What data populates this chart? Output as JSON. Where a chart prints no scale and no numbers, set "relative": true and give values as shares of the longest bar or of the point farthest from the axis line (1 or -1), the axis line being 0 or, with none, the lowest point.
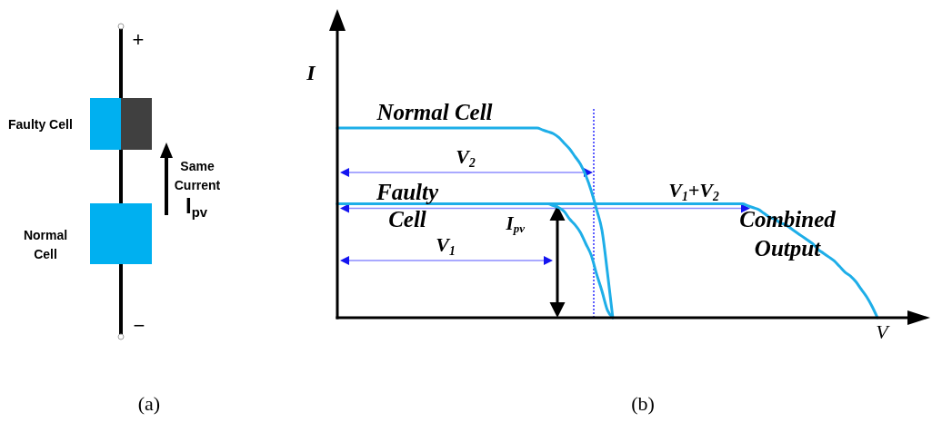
{
  "chart_data": [
    {
      "type": "other",
      "annotations": [
        "+",
        "Faulty Cell",
        "Same Current",
        "I$_{pv}$",
        "Normal Cell",
        "−",
        "(a)"
      ]
    },
    {
      "type": "line",
      "relative": true,
      "xlabel": "V",
      "ylabel": "I",
      "categories": [
        null,
        null,
        null,
        null,
        null,
        null,
        null,
        null,
        null,
        null,
        null,
        null,
        null,
        null,
        null,
        null,
        null,
        null,
        null,
        null,
        null,
        null,
        null,
        null,
        null,
        null,
        null,
        null,
        null,
        null,
        null,
        null,
        null,
        null,
        null,
        null,
        null,
        null,
        null,
        null,
        null,
        null,
        null,
        null,
        null,
        null,
        null,
        null,
        null,
        null,
        null,
        null,
        null,
        null,
        null,
        null,
        null,
        null,
        null,
        null,
        null,
        null,
        null,
        null,
        null,
        null,
        null,
        null,
        null,
        null,
        null,
        null,
        null,
        null,
        null,
        null,
        null,
        null,
        null,
        null,
        null,
        null,
        null,
        null,
        null,
        null,
        null,
        null,
        null,
        null,
        null,
        null,
        null,
        null,
        null,
        null,
        null,
        null,
        null,
        null,
        null
      ],
      "series": [
        {
          "name": "Normal Cell",
          "color": "#1eaee8",
          "values": [
            1,
            1,
            1,
            1,
            1,
            1,
            1,
            1,
            1,
            1,
            1,
            1,
            1,
            1,
            1,
            1,
            1,
            1,
            1,
            1,
            1,
            1,
            1,
            1,
            1,
            1,
            1,
            1,
            1,
            1,
            1,
            1,
            1,
            1,
            1,
            1,
            1,
            1,
            0.99,
            0.98,
            0.97,
            0.95,
            0.92,
            0.89,
            0.85,
            0.81,
            0.75,
            0.67,
            0.57,
            0.46,
            0.24,
            0,
            null,
            null,
            null,
            null,
            null,
            null,
            null,
            null,
            null,
            null,
            null,
            null,
            null,
            null,
            null,
            null,
            null,
            null,
            null,
            null,
            null,
            null,
            null,
            null,
            null,
            null,
            null,
            null,
            null,
            null,
            null,
            null,
            null,
            null,
            null,
            null,
            null,
            null,
            null,
            null,
            null,
            null,
            null,
            null,
            null,
            null,
            null,
            null,
            null
          ]
        },
        {
          "name": "Faulty Cell",
          "color": "#1eaee8",
          "values": [
            0.6,
            0.6,
            0.6,
            0.6,
            0.6,
            0.6,
            0.6,
            0.6,
            0.6,
            0.6,
            0.6,
            0.6,
            0.6,
            0.6,
            0.6,
            0.6,
            0.6,
            0.6,
            0.6,
            0.6,
            0.6,
            0.6,
            0.6,
            0.6,
            0.6,
            0.6,
            0.6,
            0.6,
            0.6,
            0.6,
            0.6,
            0.6,
            0.6,
            0.6,
            0.6,
            0.6,
            0.6,
            0.6,
            0.6,
            0.6,
            0.59,
            0.58,
            0.56,
            0.52,
            0.49,
            0.45,
            0.39,
            0.33,
            0.23,
            0.14,
            0.04,
            0,
            null,
            null,
            null,
            null,
            null,
            null,
            null,
            null,
            null,
            null,
            null,
            null,
            null,
            null,
            null,
            null,
            null,
            null,
            null,
            null,
            null,
            null,
            null,
            null,
            null,
            null,
            null,
            null,
            null,
            null,
            null,
            null,
            null,
            null,
            null,
            null,
            null,
            null,
            null,
            null,
            null,
            null,
            null,
            null,
            null,
            null,
            null,
            null,
            null
          ]
        },
        {
          "name": "Combined Output",
          "color": "#1eaee8",
          "values": [
            0.6,
            0.6,
            0.6,
            0.6,
            0.6,
            0.6,
            0.6,
            0.6,
            0.6,
            0.6,
            0.6,
            0.6,
            0.6,
            0.6,
            0.6,
            0.6,
            0.6,
            0.6,
            0.6,
            0.6,
            0.6,
            0.6,
            0.6,
            0.6,
            0.6,
            0.6,
            0.6,
            0.6,
            0.6,
            0.6,
            0.6,
            0.6,
            0.6,
            0.6,
            0.6,
            0.6,
            0.6,
            0.6,
            0.6,
            0.6,
            0.6,
            0.6,
            0.6,
            0.6,
            0.6,
            0.6,
            0.6,
            0.6,
            0.6,
            0.6,
            0.6,
            0.6,
            0.6,
            0.6,
            0.6,
            0.6,
            0.6,
            0.6,
            0.6,
            0.6,
            0.6,
            0.6,
            0.6,
            0.6,
            0.6,
            0.6,
            0.6,
            0.6,
            0.6,
            0.6,
            0.6,
            0.6,
            0.6,
            0.6,
            0.6,
            0.6,
            0.59,
            0.58,
            0.57,
            0.55,
            0.53,
            0.52,
            0.5,
            0.49,
            0.47,
            0.45,
            0.43,
            0.41,
            0.39,
            0.36,
            0.34,
            0.32,
            0.3,
            0.27,
            0.24,
            0.22,
            0.19,
            0.15,
            0.11,
            0.06,
            0
          ]
        }
      ],
      "annotations": [
        "V$_{2}$",
        "V$_{1}$+V$_{2}$",
        "I$_{pv}$",
        "V$_{1}$",
        "(b)"
      ]
    }
  ]
}
